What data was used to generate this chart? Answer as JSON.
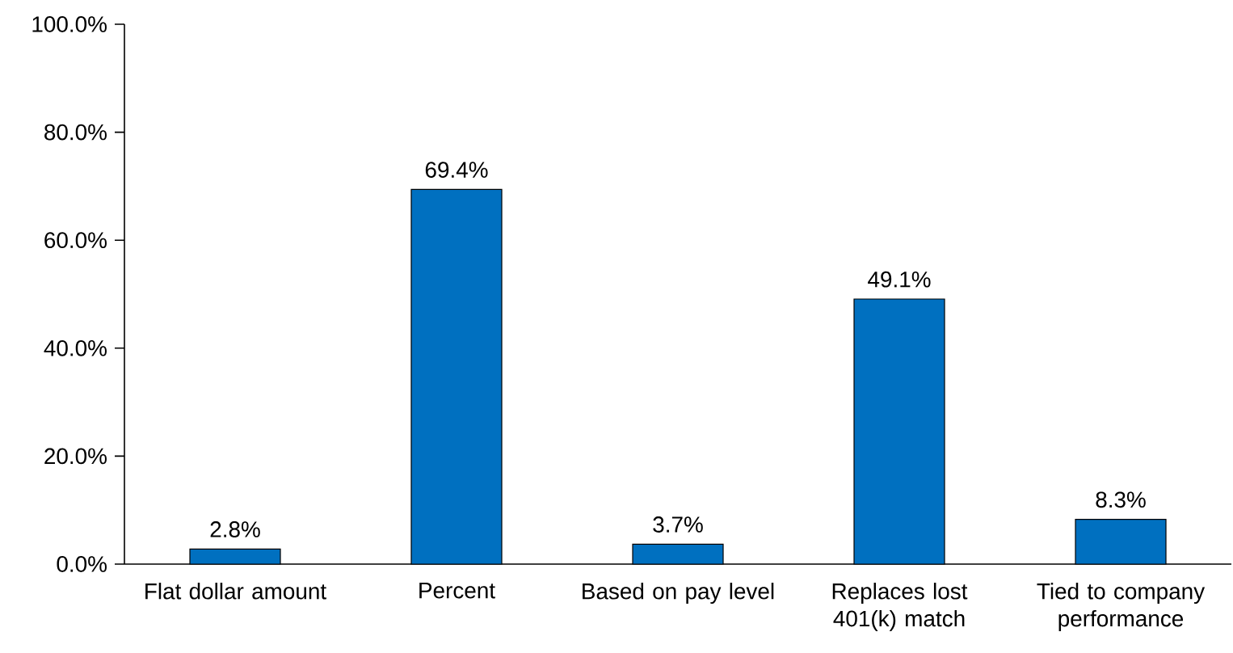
{
  "chart_data": {
    "type": "bar",
    "categories": [
      "Flat dollar amount",
      "Percent",
      "Based on pay level",
      "Replaces lost 401(k) match",
      "Tied to company performance"
    ],
    "values": [
      2.8,
      69.4,
      3.7,
      49.1,
      8.3
    ],
    "value_labels": [
      "2.8%",
      "69.4%",
      "3.7%",
      "49.1%",
      "8.3%"
    ],
    "color": "#0070c0",
    "ylim": [
      0,
      100
    ],
    "yticks": [
      {
        "value": 0,
        "label": "0.0%"
      },
      {
        "value": 20,
        "label": "20.0%"
      },
      {
        "value": 40,
        "label": "40.0%"
      },
      {
        "value": 60,
        "label": "60.0%"
      },
      {
        "value": 80,
        "label": "80.0%"
      },
      {
        "value": 100,
        "label": "100.0%"
      }
    ]
  }
}
